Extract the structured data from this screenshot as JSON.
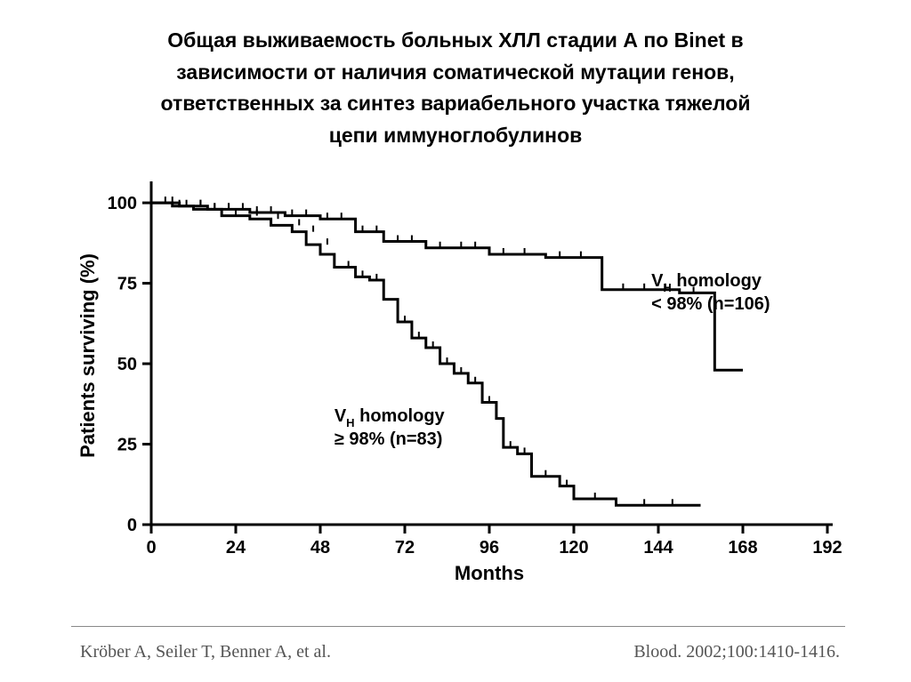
{
  "title": {
    "lines": [
      "Общая выживаемость больных ХЛЛ стадии А по Binet в",
      "зависимости от наличия соматической мутации генов,",
      "ответственных за синтез вариабельного участка тяжелой",
      "цепи иммуноглобулинов"
    ],
    "fontsize": 23,
    "color": "#000000",
    "weight": "bold"
  },
  "chart": {
    "type": "survival-step",
    "xlabel": "Months",
    "ylabel": "Patients surviving (%)",
    "label_fontsize": 22,
    "label_weight": "bold",
    "tick_fontsize": 20,
    "xlim": [
      0,
      192
    ],
    "ylim": [
      0,
      105
    ],
    "xtick_step": 24,
    "ytick_step": 25,
    "xticks": [
      0,
      24,
      48,
      72,
      96,
      120,
      144,
      168,
      192
    ],
    "yticks": [
      0,
      25,
      50,
      75,
      100
    ],
    "axis_color": "#000000",
    "axis_width": 3,
    "background_color": "#ffffff",
    "series": [
      {
        "id": "low_homology",
        "label_lines": [
          "V",
          "H",
          " homology",
          "< 98% (n=106)"
        ],
        "label_x": 142,
        "label_y_top": 74,
        "color": "#000000",
        "line_width": 3,
        "points": [
          [
            0,
            100
          ],
          [
            8,
            100
          ],
          [
            8,
            99
          ],
          [
            16,
            99
          ],
          [
            16,
            98
          ],
          [
            28,
            98
          ],
          [
            28,
            97
          ],
          [
            38,
            97
          ],
          [
            38,
            96
          ],
          [
            48,
            96
          ],
          [
            48,
            95
          ],
          [
            58,
            95
          ],
          [
            58,
            91
          ],
          [
            66,
            91
          ],
          [
            66,
            88
          ],
          [
            78,
            88
          ],
          [
            78,
            86
          ],
          [
            96,
            86
          ],
          [
            96,
            84
          ],
          [
            112,
            84
          ],
          [
            112,
            83
          ],
          [
            128,
            83
          ],
          [
            128,
            73
          ],
          [
            150,
            73
          ],
          [
            150,
            72
          ],
          [
            160,
            72
          ],
          [
            160,
            48
          ],
          [
            168,
            48
          ]
        ],
        "censor_ticks": [
          [
            6,
            100
          ],
          [
            10,
            99
          ],
          [
            14,
            99
          ],
          [
            18,
            98
          ],
          [
            22,
            98
          ],
          [
            26,
            98
          ],
          [
            30,
            97
          ],
          [
            34,
            97
          ],
          [
            40,
            96
          ],
          [
            44,
            96
          ],
          [
            50,
            95
          ],
          [
            54,
            95
          ],
          [
            60,
            91
          ],
          [
            64,
            91
          ],
          [
            70,
            88
          ],
          [
            74,
            88
          ],
          [
            82,
            86
          ],
          [
            88,
            86
          ],
          [
            92,
            86
          ],
          [
            100,
            84
          ],
          [
            106,
            84
          ],
          [
            116,
            83
          ],
          [
            122,
            83
          ],
          [
            134,
            73
          ],
          [
            140,
            73
          ],
          [
            146,
            73
          ],
          [
            154,
            72
          ]
        ]
      },
      {
        "id": "high_homology",
        "label_lines": [
          "V",
          "H",
          " homology",
          "≥ 98% (n=83)"
        ],
        "label_x": 52,
        "label_y_top": 32,
        "color": "#000000",
        "line_width": 3,
        "points": [
          [
            0,
            100
          ],
          [
            6,
            100
          ],
          [
            6,
            99
          ],
          [
            12,
            99
          ],
          [
            12,
            98
          ],
          [
            20,
            98
          ],
          [
            20,
            96
          ],
          [
            28,
            96
          ],
          [
            28,
            95
          ],
          [
            34,
            95
          ],
          [
            34,
            93
          ],
          [
            40,
            93
          ],
          [
            40,
            91
          ],
          [
            44,
            91
          ],
          [
            44,
            87
          ],
          [
            48,
            87
          ],
          [
            48,
            84
          ],
          [
            52,
            84
          ],
          [
            52,
            80
          ],
          [
            58,
            80
          ],
          [
            58,
            77
          ],
          [
            62,
            77
          ],
          [
            62,
            76
          ],
          [
            66,
            76
          ],
          [
            66,
            70
          ],
          [
            70,
            70
          ],
          [
            70,
            63
          ],
          [
            74,
            63
          ],
          [
            74,
            58
          ],
          [
            78,
            58
          ],
          [
            78,
            55
          ],
          [
            82,
            55
          ],
          [
            82,
            50
          ],
          [
            86,
            50
          ],
          [
            86,
            47
          ],
          [
            90,
            47
          ],
          [
            90,
            44
          ],
          [
            94,
            44
          ],
          [
            94,
            38
          ],
          [
            98,
            38
          ],
          [
            98,
            33
          ],
          [
            100,
            33
          ],
          [
            100,
            24
          ],
          [
            104,
            24
          ],
          [
            104,
            22
          ],
          [
            108,
            22
          ],
          [
            108,
            15
          ],
          [
            116,
            15
          ],
          [
            116,
            12
          ],
          [
            120,
            12
          ],
          [
            120,
            8
          ],
          [
            132,
            8
          ],
          [
            132,
            6
          ],
          [
            156,
            6
          ]
        ],
        "censor_ticks": [
          [
            4,
            100
          ],
          [
            8,
            99
          ],
          [
            14,
            99
          ],
          [
            18,
            98
          ],
          [
            22,
            98
          ],
          [
            24,
            96
          ],
          [
            30,
            96
          ],
          [
            36,
            95
          ],
          [
            42,
            93
          ],
          [
            46,
            91
          ],
          [
            50,
            87
          ],
          [
            56,
            80
          ],
          [
            60,
            77
          ],
          [
            64,
            76
          ],
          [
            72,
            63
          ],
          [
            76,
            58
          ],
          [
            80,
            55
          ],
          [
            84,
            50
          ],
          [
            88,
            47
          ],
          [
            92,
            44
          ],
          [
            96,
            38
          ],
          [
            102,
            24
          ],
          [
            106,
            22
          ],
          [
            112,
            15
          ],
          [
            118,
            12
          ],
          [
            126,
            8
          ],
          [
            140,
            6
          ],
          [
            148,
            6
          ]
        ]
      }
    ]
  },
  "citation": {
    "authors": "Kröber A, Seiler T, Benner A, et al.",
    "journal": "Blood.  2002;100:1410-1416.",
    "fontsize": 20,
    "color": "#555555",
    "font": "Times New Roman"
  }
}
